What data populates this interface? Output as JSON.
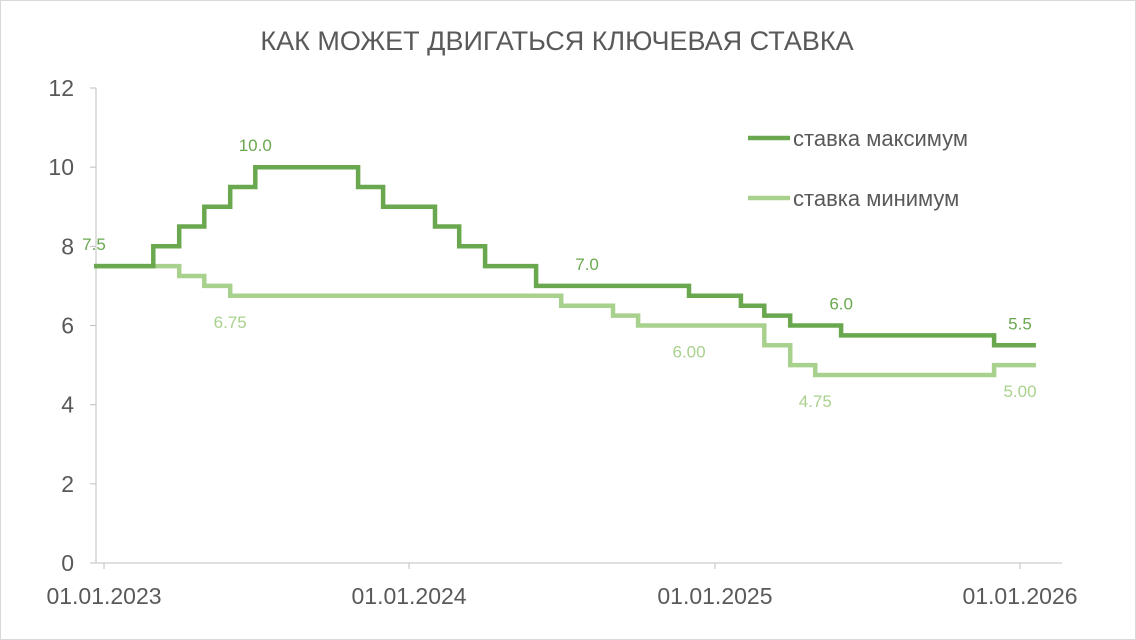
{
  "chart_data": {
    "type": "line",
    "step": true,
    "title": "КАК МОЖЕТ ДВИГАТЬСЯ КЛЮЧЕВАЯ СТАВКА",
    "xlabel": "",
    "ylabel": "",
    "xlim": [
      "2023-01-01",
      "2026-01-01"
    ],
    "ylim": [
      0,
      12
    ],
    "x_ticks": [
      "01.01.2023",
      "01.01.2024",
      "01.01.2025",
      "01.01.2026"
    ],
    "y_ticks": [
      "0",
      "2",
      "4",
      "6",
      "8",
      "10",
      "12"
    ],
    "grid": false,
    "legend_position": "top-right",
    "series": [
      {
        "name": "ставка максимум",
        "color": "#6aa84f",
        "points": [
          [
            "2022-12-20",
            7.5
          ],
          [
            "2023-03-01",
            7.5
          ],
          [
            "2023-03-01",
            8.0
          ],
          [
            "2023-04-01",
            8.0
          ],
          [
            "2023-04-01",
            8.5
          ],
          [
            "2023-05-01",
            8.5
          ],
          [
            "2023-05-01",
            9.0
          ],
          [
            "2023-06-01",
            9.0
          ],
          [
            "2023-06-01",
            9.5
          ],
          [
            "2023-07-01",
            9.5
          ],
          [
            "2023-07-01",
            10.0
          ],
          [
            "2023-11-01",
            10.0
          ],
          [
            "2023-11-01",
            9.5
          ],
          [
            "2023-12-01",
            9.5
          ],
          [
            "2023-12-01",
            9.0
          ],
          [
            "2024-02-01",
            9.0
          ],
          [
            "2024-02-01",
            8.5
          ],
          [
            "2024-03-01",
            8.5
          ],
          [
            "2024-03-01",
            8.0
          ],
          [
            "2024-04-01",
            8.0
          ],
          [
            "2024-04-01",
            7.5
          ],
          [
            "2024-06-01",
            7.5
          ],
          [
            "2024-06-01",
            7.0
          ],
          [
            "2024-12-01",
            7.0
          ],
          [
            "2024-12-01",
            6.75
          ],
          [
            "2025-02-01",
            6.75
          ],
          [
            "2025-02-01",
            6.5
          ],
          [
            "2025-03-01",
            6.5
          ],
          [
            "2025-03-01",
            6.25
          ],
          [
            "2025-04-01",
            6.25
          ],
          [
            "2025-04-01",
            6.0
          ],
          [
            "2025-06-01",
            6.0
          ],
          [
            "2025-06-01",
            5.75
          ],
          [
            "2025-12-01",
            5.75
          ],
          [
            "2025-12-01",
            5.5
          ],
          [
            "2026-01-20",
            5.5
          ]
        ],
        "data_labels": [
          {
            "x": "2022-12-20",
            "y": 7.5,
            "text": "7.5",
            "pos": "above"
          },
          {
            "x": "2023-07-01",
            "y": 10.0,
            "text": "10.0",
            "pos": "above"
          },
          {
            "x": "2024-08-01",
            "y": 7.0,
            "text": "7.0",
            "pos": "above"
          },
          {
            "x": "2025-06-01",
            "y": 6.0,
            "text": "6.0",
            "pos": "above"
          },
          {
            "x": "2026-01-01",
            "y": 5.5,
            "text": "5.5",
            "pos": "above"
          }
        ]
      },
      {
        "name": "ставка минимум",
        "color": "#a9d18e",
        "points": [
          [
            "2022-12-20",
            7.5
          ],
          [
            "2023-04-01",
            7.5
          ],
          [
            "2023-04-01",
            7.25
          ],
          [
            "2023-05-01",
            7.25
          ],
          [
            "2023-05-01",
            7.0
          ],
          [
            "2023-06-01",
            7.0
          ],
          [
            "2023-06-01",
            6.75
          ],
          [
            "2024-07-01",
            6.75
          ],
          [
            "2024-07-01",
            6.5
          ],
          [
            "2024-09-01",
            6.5
          ],
          [
            "2024-09-01",
            6.25
          ],
          [
            "2024-10-01",
            6.25
          ],
          [
            "2024-10-01",
            6.0
          ],
          [
            "2025-03-01",
            6.0
          ],
          [
            "2025-03-01",
            5.5
          ],
          [
            "2025-04-01",
            5.5
          ],
          [
            "2025-04-01",
            5.0
          ],
          [
            "2025-05-01",
            5.0
          ],
          [
            "2025-05-01",
            4.75
          ],
          [
            "2025-12-01",
            4.75
          ],
          [
            "2025-12-01",
            5.0
          ],
          [
            "2026-01-20",
            5.0
          ]
        ],
        "data_labels": [
          {
            "x": "2023-06-01",
            "y": 6.75,
            "text": "6.75",
            "pos": "below"
          },
          {
            "x": "2024-12-01",
            "y": 6.0,
            "text": "6.00",
            "pos": "below"
          },
          {
            "x": "2025-05-01",
            "y": 4.75,
            "text": "4.75",
            "pos": "below"
          },
          {
            "x": "2026-01-01",
            "y": 5.0,
            "text": "5.00",
            "pos": "below"
          }
        ]
      }
    ]
  }
}
